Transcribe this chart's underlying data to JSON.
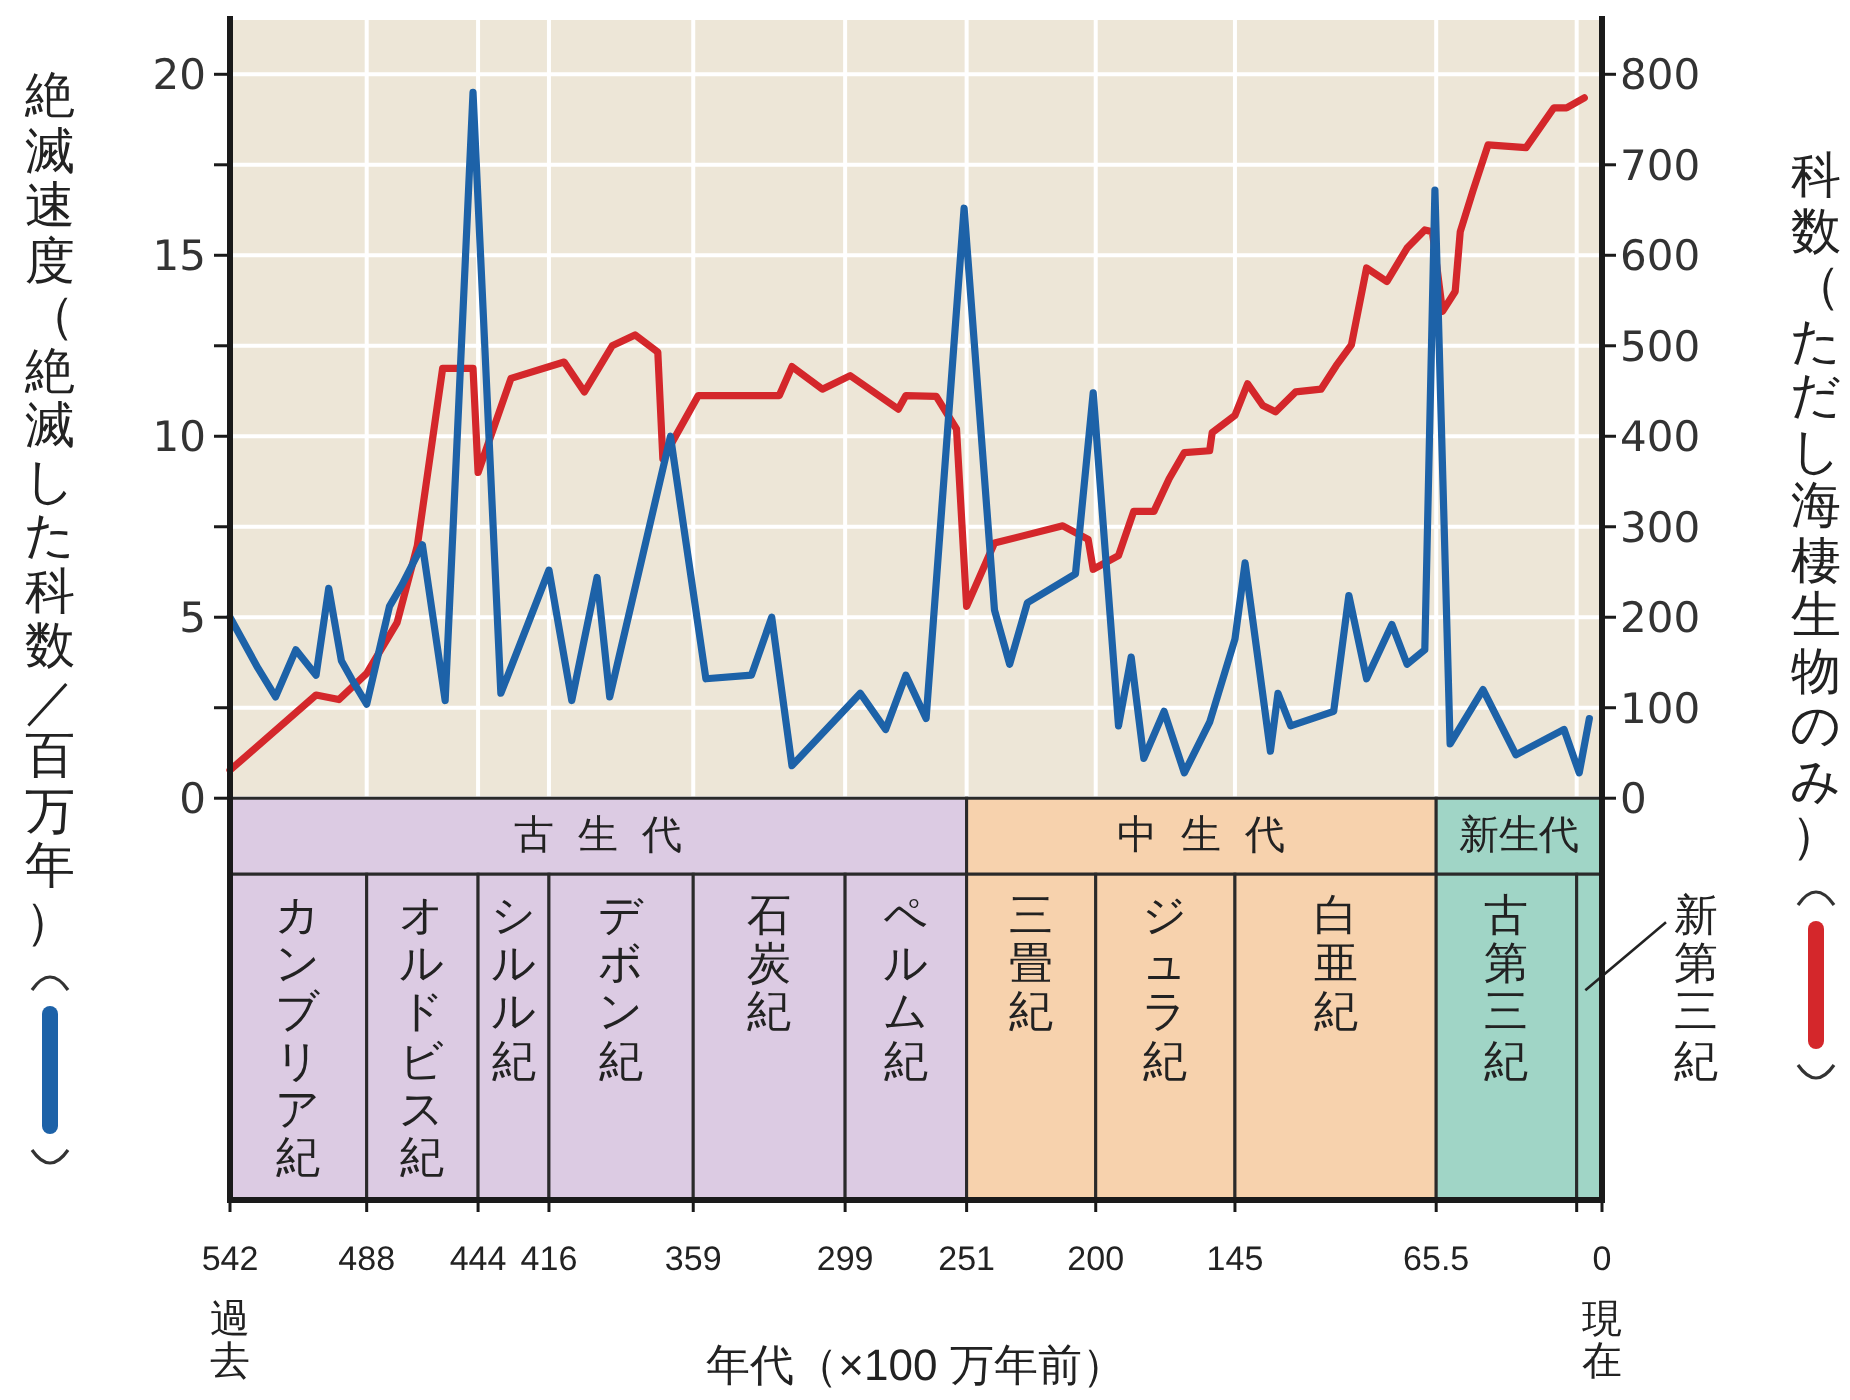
{
  "chart_data": {
    "type": "line",
    "xlabel": "年代（×100 万年前）",
    "ylabel": "絶滅速度（絶滅した科数／百万年）",
    "y2label": "科数（ただし海棲生物のみ）",
    "xlim": [
      542,
      0
    ],
    "xticks": [
      542,
      488,
      444,
      416,
      359,
      299,
      251,
      200,
      145,
      65.5,
      {
        "value": 10,
        "label": null
      },
      0
    ],
    "ylim": [
      -11.1,
      21.5
    ],
    "yticks": [
      0,
      {
        "value": 2.5,
        "label": null
      },
      5,
      {
        "value": 7.5,
        "label": null
      },
      10,
      {
        "value": 12.5,
        "label": null
      },
      15,
      {
        "value": 17.5,
        "label": null
      },
      20
    ],
    "y2lim": [
      -444,
      860
    ],
    "y2ticks": [
      0,
      100,
      200,
      300,
      400,
      500,
      600,
      700,
      800
    ],
    "grid": true,
    "series": [
      {
        "color": "#d4272b",
        "axis": "y2",
        "x": [
          542,
          508,
          499,
          488,
          476,
          468,
          458,
          446,
          444,
          431,
          410,
          402,
          391,
          382,
          373,
          371,
          357,
          325,
          320,
          308,
          297,
          278,
          275,
          263,
          255,
          251,
          240,
          213,
          203,
          201,
          191,
          185,
          177,
          171,
          165,
          155,
          154,
          145,
          140,
          134,
          129,
          121,
          111,
          105,
          99,
          93,
          85,
          77,
          70,
          67,
          63,
          58,
          56,
          51,
          45,
          30,
          19,
          14,
          7
        ],
        "values": [
          31,
          114,
          109,
          138,
          194,
          279,
          475,
          475,
          360,
          464,
          482,
          449,
          500,
          512,
          493,
          375,
          445,
          445,
          477,
          452,
          467,
          430,
          445,
          444,
          408,
          212,
          282,
          301,
          286,
          253,
          268,
          317,
          317,
          353,
          382,
          384,
          404,
          423,
          458,
          434,
          427,
          449,
          452,
          478,
          501,
          586,
          571,
          608,
          628,
          626,
          538,
          560,
          626,
          671,
          722,
          719,
          763,
          763,
          774
        ]
      },
      {
        "color": "#1d62a8",
        "x": [
          542,
          531,
          524,
          516,
          508,
          503,
          498,
          494,
          488,
          479,
          474,
          466,
          457,
          446,
          435,
          416,
          407,
          397,
          392,
          368,
          354,
          336,
          328,
          320,
          293,
          283,
          275,
          267,
          252,
          240,
          234,
          227,
          208,
          201,
          191,
          186,
          181,
          173,
          165,
          155,
          145,
          141,
          131,
          128,
          123,
          106,
          100,
          93,
          83,
          77,
          70,
          66,
          60,
          47,
          34,
          15,
          9,
          5
        ],
        "values": [
          5,
          3.6,
          2.8,
          4.1,
          3.4,
          5.8,
          3.8,
          3.3,
          2.6,
          5.3,
          5.9,
          7,
          2.7,
          19.5,
          2.9,
          6.3,
          2.7,
          6.1,
          2.8,
          10,
          3.3,
          3.4,
          5,
          0.9,
          2.9,
          1.9,
          3.4,
          2.2,
          16.3,
          5.2,
          3.7,
          5.4,
          6.2,
          11.2,
          2,
          3.9,
          1.1,
          2.4,
          0.7,
          2.1,
          4.4,
          6.5,
          1.3,
          2.9,
          2,
          2.4,
          5.6,
          3.3,
          4.8,
          3.7,
          4.1,
          16.8,
          1.5,
          3,
          1.2,
          1.9,
          0.7,
          2.2
        ]
      }
    ],
    "bands": [
      {
        "axis": "x",
        "from": 542,
        "to": 251,
        "label": "古生代",
        "color": "#dccbe3"
      },
      {
        "axis": "x",
        "from": 251,
        "to": 65.5,
        "label": "中生代",
        "color": "#f7d2ad"
      },
      {
        "axis": "x",
        "from": 65.5,
        "to": 0,
        "label": "新生代",
        "color": "#a0d5c6"
      },
      {
        "axis": "x",
        "from": 542,
        "to": 488,
        "label": "カンブリア紀",
        "color": "#dccbe3"
      },
      {
        "axis": "x",
        "from": 488,
        "to": 444,
        "label": "オルドビス紀",
        "color": "#dccbe3"
      },
      {
        "axis": "x",
        "from": 444,
        "to": 416,
        "label": "シルル紀",
        "color": "#dccbe3"
      },
      {
        "axis": "x",
        "from": 416,
        "to": 359,
        "label": "デボン紀",
        "color": "#dccbe3"
      },
      {
        "axis": "x",
        "from": 359,
        "to": 299,
        "label": "石炭紀",
        "color": "#dccbe3"
      },
      {
        "axis": "x",
        "from": 299,
        "to": 251,
        "label": "ペルム紀",
        "color": "#dccbe3"
      },
      {
        "axis": "x",
        "from": 251,
        "to": 200,
        "label": "三畳紀",
        "color": "#f7d2ad"
      },
      {
        "axis": "x",
        "from": 200,
        "to": 145,
        "label": "ジュラ紀",
        "color": "#f7d2ad"
      },
      {
        "axis": "x",
        "from": 145,
        "to": 65.5,
        "label": "白亜紀",
        "color": "#f7d2ad"
      },
      {
        "axis": "x",
        "from": 65.5,
        "to": 10,
        "label": "古第三紀",
        "color": "#a0d5c6"
      },
      {
        "axis": "x",
        "from": 10,
        "to": 0,
        "label": "新第三紀",
        "color": "#a0d5c6"
      }
    ],
    "annotations": [
      "過去",
      "現在"
    ]
  }
}
